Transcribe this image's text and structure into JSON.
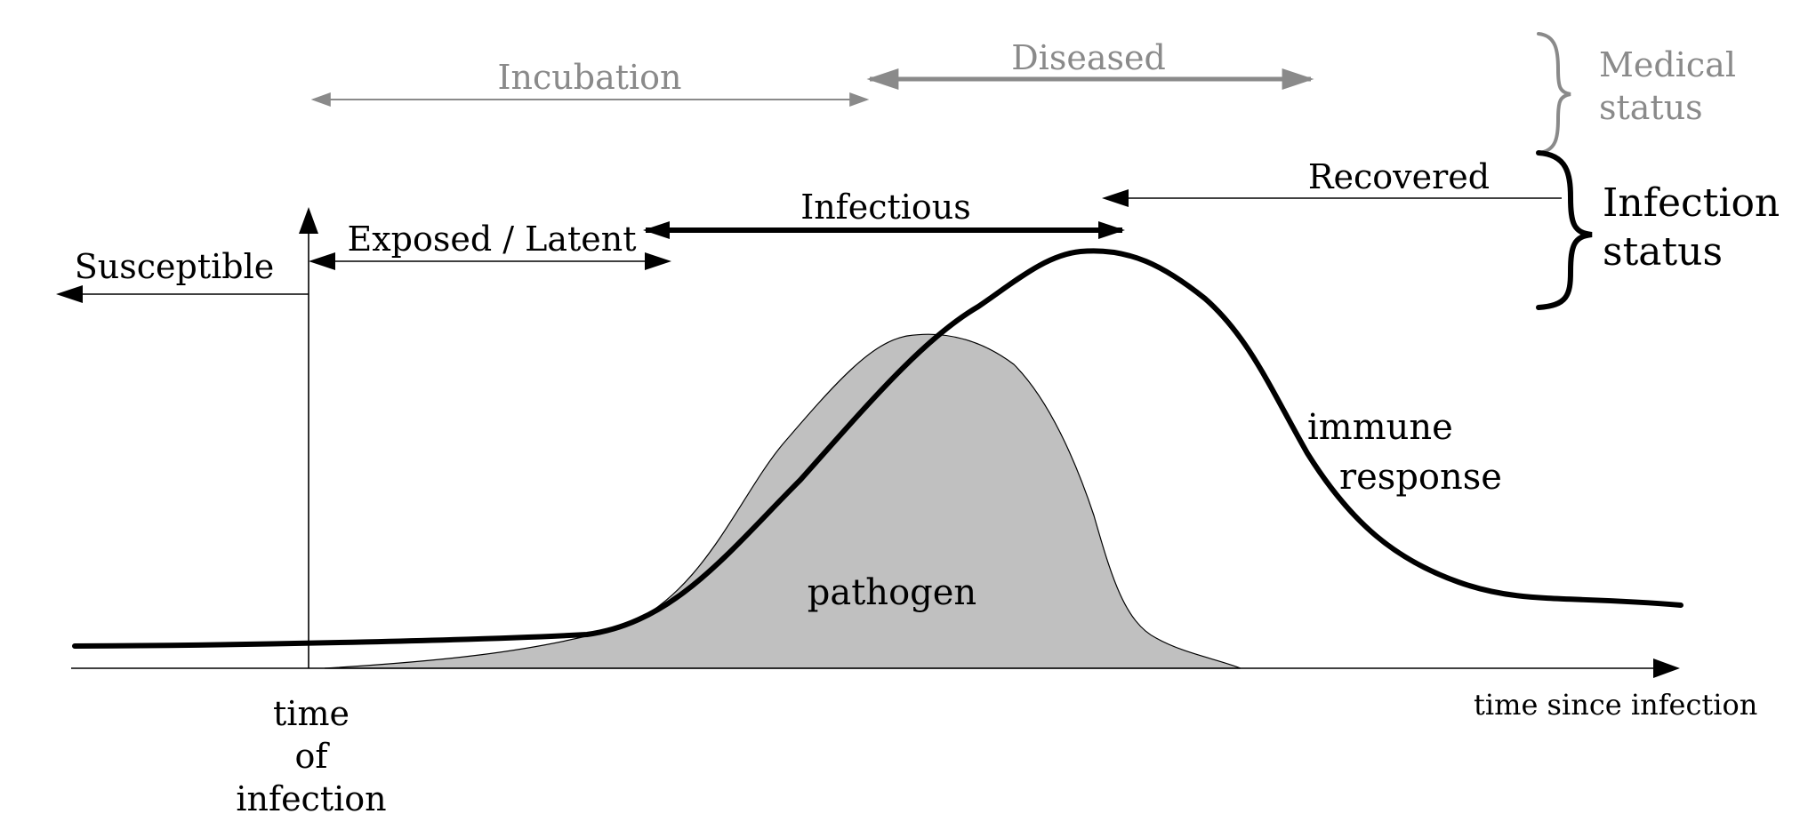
{
  "diagram": {
    "medical_status": {
      "incubation": "Incubation",
      "diseased": "Diseased",
      "group_label_line1": "Medical",
      "group_label_line2": "status"
    },
    "infection_status": {
      "susceptible": "Susceptible",
      "exposed_latent": "Exposed / Latent",
      "infectious": "Infectious",
      "recovered": "Recovered",
      "group_label_line1": "Infection",
      "group_label_line2": "status"
    },
    "curves": {
      "pathogen": "pathogen",
      "immune_line1": "immune",
      "immune_line2": "response"
    },
    "axes": {
      "x_label": "time since infection",
      "origin_line1": "time",
      "origin_line2": "of",
      "origin_line3": "infection"
    },
    "colors": {
      "primary": "#000000",
      "medical_grey": "#8a8a8a",
      "pathogen_fill": "#c0c0c0"
    }
  }
}
